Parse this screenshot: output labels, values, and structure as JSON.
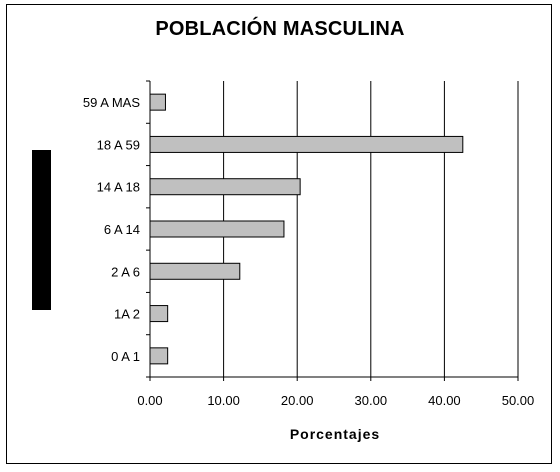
{
  "chart_data": {
    "type": "bar",
    "orientation": "horizontal",
    "title": "POBLACIÓN MASCULINA",
    "xlabel": "Porcentajes",
    "ylabel": "",
    "categories": [
      "59 A MAS",
      "18 A 59",
      "14 A 18",
      "6 A 14",
      "2 A 6",
      "1A 2",
      "0 A 1"
    ],
    "values": [
      2.1,
      42.5,
      20.4,
      18.2,
      12.2,
      2.4,
      2.4
    ],
    "xlim": [
      0,
      50
    ],
    "xticks": [
      "0.00",
      "10.00",
      "20.00",
      "30.00",
      "40.00",
      "50.00"
    ],
    "grid": "vertical",
    "legend": "none",
    "bar_color": "#c0c0c0",
    "edge_color": "#000000"
  }
}
